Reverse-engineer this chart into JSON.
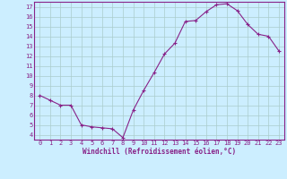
{
  "x": [
    0,
    1,
    2,
    3,
    4,
    5,
    6,
    7,
    8,
    9,
    10,
    11,
    12,
    13,
    14,
    15,
    16,
    17,
    18,
    19,
    20,
    21,
    22,
    23
  ],
  "y": [
    8,
    7.5,
    7,
    7,
    5,
    4.8,
    4.7,
    4.6,
    3.7,
    6.5,
    8.5,
    10.3,
    12.2,
    13.3,
    15.5,
    15.6,
    16.5,
    17.2,
    17.3,
    16.6,
    15.2,
    14.2,
    14.0,
    12.5
  ],
  "line_color": "#882288",
  "marker": "+",
  "marker_color": "#882288",
  "bg_color": "#cceeff",
  "grid_color": "#aacccc",
  "axis_label_color": "#882288",
  "tick_color": "#882288",
  "xlabel": "Windchill (Refroidissement éolien,°C)",
  "ylabel": "",
  "ylim": [
    3.5,
    17.5
  ],
  "xlim": [
    -0.5,
    23.5
  ],
  "yticks": [
    4,
    5,
    6,
    7,
    8,
    9,
    10,
    11,
    12,
    13,
    14,
    15,
    16,
    17
  ],
  "xticks": [
    0,
    1,
    2,
    3,
    4,
    5,
    6,
    7,
    8,
    9,
    10,
    11,
    12,
    13,
    14,
    15,
    16,
    17,
    18,
    19,
    20,
    21,
    22,
    23
  ],
  "spine_color": "#882288",
  "xlabel_fontsize": 5.5,
  "tick_fontsize": 5.0
}
